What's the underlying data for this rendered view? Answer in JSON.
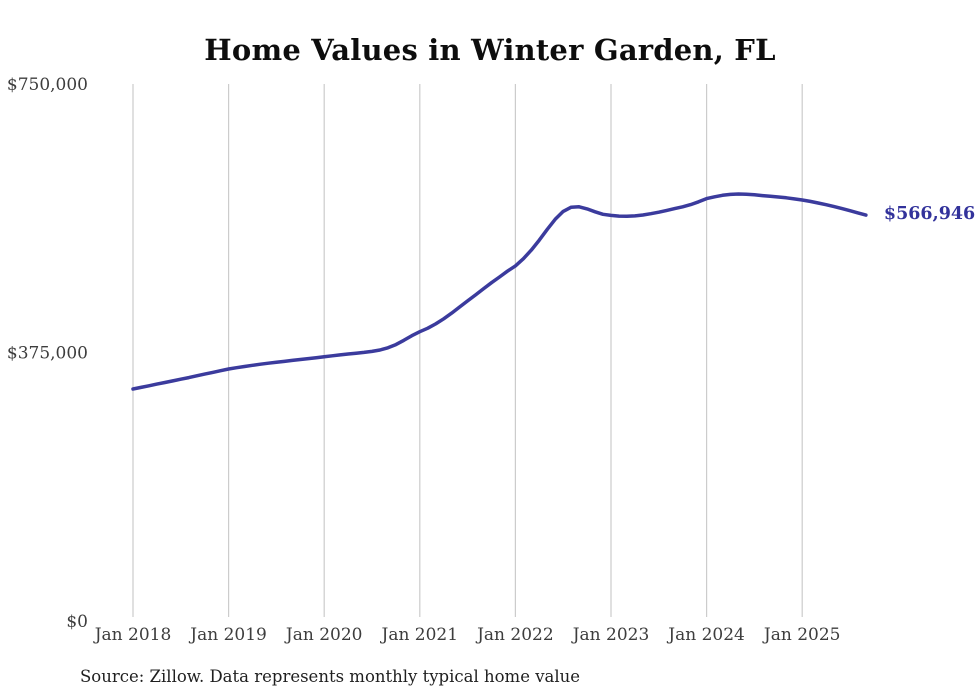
{
  "title": "Home Values in Winter Garden, FL",
  "source_note": "Source: Zillow. Data represents monthly typical home value",
  "end_label": "$566,946",
  "colors": {
    "line": "#3b3b9d",
    "end_label": "#32329b",
    "grid": "#cccccc",
    "axis_text": "#3d3d3d",
    "title_text": "#0d0d0d"
  },
  "chart_data": {
    "type": "line",
    "title": "Home Values in Winter Garden, FL",
    "xlabel": "",
    "ylabel": "",
    "ylim": [
      0,
      750000
    ],
    "y_ticks": [
      0,
      375000,
      750000
    ],
    "y_tick_labels": [
      "$0",
      "$375,000",
      "$750,000"
    ],
    "x_tick_labels": [
      "Jan 2018",
      "Jan 2019",
      "Jan 2020",
      "Jan 2021",
      "Jan 2022",
      "Jan 2023",
      "Jan 2024",
      "Jan 2025"
    ],
    "grid": "vertical-only",
    "legend": "none",
    "end_value": 566946,
    "series": [
      {
        "name": "Typical home value",
        "frequency": "monthly",
        "x_start": "2018-01",
        "x_end": "2025-09",
        "values": [
          324000,
          326200,
          328500,
          330800,
          333100,
          335400,
          337700,
          340000,
          342400,
          344800,
          347200,
          349600,
          352000,
          353800,
          355500,
          357100,
          358600,
          360000,
          361300,
          362600,
          363900,
          365200,
          366500,
          367800,
          369000,
          370400,
          371700,
          372900,
          374000,
          375100,
          376500,
          378500,
          381500,
          386000,
          392000,
          398500,
          404000,
          409000,
          415000,
          422000,
          430000,
          438500,
          447000,
          455500,
          464000,
          472500,
          480500,
          488500,
          496000,
          506000,
          518000,
          532000,
          547000,
          561000,
          572000,
          578000,
          578500,
          575500,
          571500,
          568000,
          566500,
          565500,
          565200,
          565800,
          567000,
          568800,
          571000,
          573500,
          576000,
          578500,
          581500,
          585500,
          590000,
          592500,
          594500,
          595800,
          596300,
          596000,
          595200,
          594200,
          593200,
          592200,
          591000,
          589500,
          588000,
          586000,
          583800,
          581400,
          578800,
          576000,
          573000,
          570000,
          566946
        ]
      }
    ]
  }
}
